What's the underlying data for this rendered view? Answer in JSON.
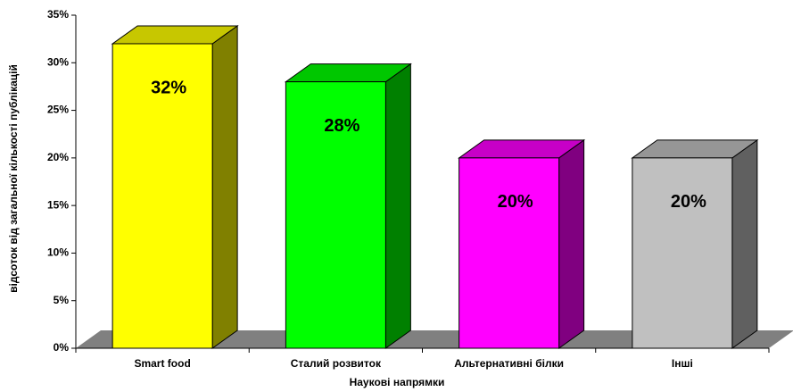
{
  "chart_data": {
    "type": "bar3d",
    "x_label": "Наукові напрямки",
    "y_label": "відсоток від загальної кількості публікацій",
    "categories": [
      "Smart food",
      "Сталий розвиток",
      "Альтернативні білки",
      "Інші"
    ],
    "values": [
      32,
      28,
      20,
      20
    ],
    "value_labels": [
      "32%",
      "28%",
      "20%",
      "20%"
    ],
    "colors": [
      "#ffff00",
      "#00ff00",
      "#ff00ff",
      "#c0c0c0"
    ],
    "ylim": [
      0,
      35
    ],
    "yticks": [
      {
        "value": 0,
        "label": "0%"
      },
      {
        "value": 5,
        "label": "5%"
      },
      {
        "value": 10,
        "label": "10%"
      },
      {
        "value": 15,
        "label": "15%"
      },
      {
        "value": 20,
        "label": "20%"
      },
      {
        "value": 25,
        "label": "25%"
      },
      {
        "value": 30,
        "label": "30%"
      },
      {
        "value": 35,
        "label": "35%"
      }
    ],
    "grid": false
  }
}
